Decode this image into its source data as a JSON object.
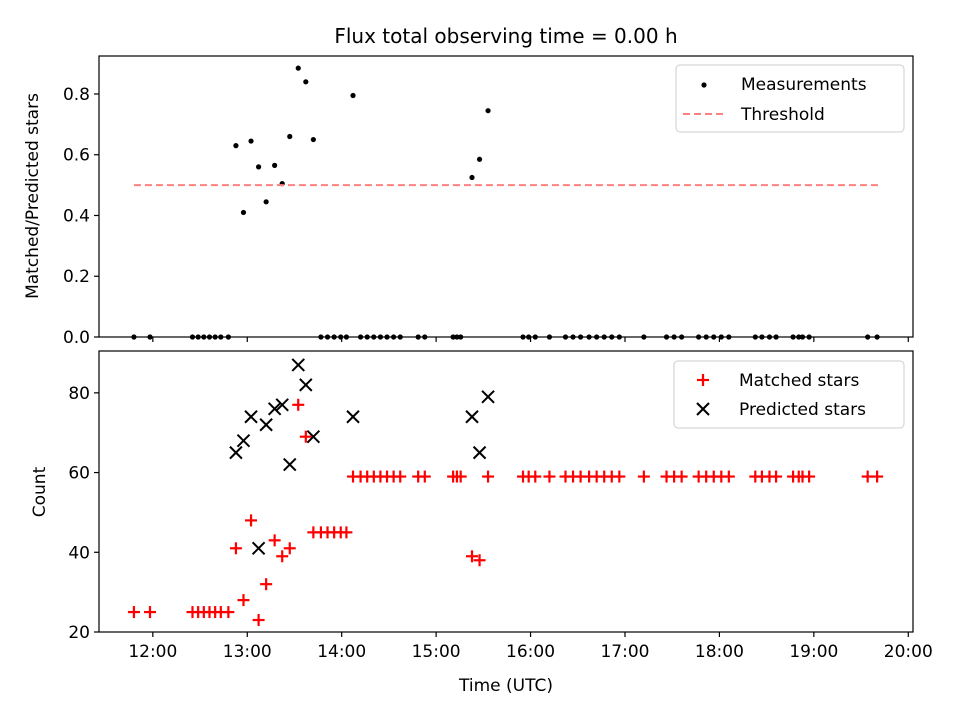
{
  "chart_data": [
    {
      "type": "scatter",
      "title": "Flux total observing time = 0.00 h",
      "xlabel": "",
      "ylabel": "Matched/Predicted stars",
      "xlim": [
        11.43,
        20.05
      ],
      "ylim": [
        0.0,
        0.925
      ],
      "xticks": [
        12,
        13,
        14,
        15,
        16,
        17,
        18,
        19,
        20
      ],
      "yticks": [
        0.0,
        0.2,
        0.4,
        0.6,
        0.8
      ],
      "ytick_labels": [
        "0.0",
        "0.2",
        "0.4",
        "0.6",
        "0.8"
      ],
      "legend": "upper right",
      "series": [
        {
          "name": "Measurements",
          "kind": "dot",
          "color": "#000000",
          "x": [
            11.8,
            11.97,
            12.42,
            12.48,
            12.54,
            12.6,
            12.66,
            12.72,
            12.8,
            12.88,
            12.96,
            13.04,
            13.12,
            13.2,
            13.29,
            13.37,
            13.45,
            13.54,
            13.62,
            13.7,
            13.78,
            13.85,
            13.92,
            13.99,
            14.05,
            14.12,
            14.2,
            14.27,
            14.34,
            14.41,
            14.48,
            14.55,
            14.62,
            14.81,
            14.88,
            15.18,
            15.22,
            15.26,
            15.38,
            15.46,
            15.55,
            15.92,
            15.98,
            16.05,
            16.2,
            16.37,
            16.45,
            16.53,
            16.62,
            16.7,
            16.78,
            16.86,
            16.94,
            17.2,
            17.44,
            17.52,
            17.6,
            17.78,
            17.86,
            17.94,
            18.02,
            18.1,
            18.38,
            18.45,
            18.53,
            18.6,
            18.78,
            18.84,
            18.88,
            18.95,
            19.57,
            19.67
          ],
          "y": [
            0,
            0,
            0,
            0,
            0,
            0,
            0,
            0,
            0,
            0.63,
            0.41,
            0.645,
            0.56,
            0.445,
            0.565,
            0.505,
            0.66,
            0.885,
            0.84,
            0.65,
            0,
            0,
            0,
            0,
            0,
            0.795,
            0,
            0,
            0,
            0,
            0,
            0,
            0,
            0,
            0,
            0,
            0,
            0,
            0.525,
            0.585,
            0.745,
            0,
            0,
            0,
            0,
            0,
            0,
            0,
            0,
            0,
            0,
            0,
            0,
            0,
            0,
            0,
            0,
            0,
            0,
            0,
            0,
            0,
            0,
            0,
            0,
            0,
            0,
            0,
            0,
            0,
            0,
            0
          ]
        },
        {
          "name": "Threshold",
          "kind": "line",
          "color": "#ff8080",
          "x": [
            11.8,
            19.7
          ],
          "y": [
            0.5,
            0.5
          ]
        }
      ]
    },
    {
      "type": "scatter",
      "title": "",
      "xlabel": "Time (UTC)",
      "ylabel": "Count",
      "xlim": [
        11.43,
        20.05
      ],
      "ylim": [
        20,
        90.5
      ],
      "xticks": [
        12,
        13,
        14,
        15,
        16,
        17,
        18,
        19,
        20
      ],
      "xtick_labels": [
        "12:00",
        "13:00",
        "14:00",
        "15:00",
        "16:00",
        "17:00",
        "18:00",
        "19:00",
        "20:00"
      ],
      "yticks": [
        20,
        40,
        60,
        80
      ],
      "ytick_labels": [
        "20",
        "40",
        "60",
        "80"
      ],
      "legend": "upper right",
      "series": [
        {
          "name": "Matched stars",
          "kind": "plus",
          "color": "#ff0000",
          "x": [
            11.8,
            11.97,
            12.42,
            12.48,
            12.54,
            12.6,
            12.66,
            12.72,
            12.8,
            12.88,
            12.96,
            13.04,
            13.12,
            13.2,
            13.29,
            13.37,
            13.45,
            13.54,
            13.62,
            13.7,
            13.78,
            13.85,
            13.92,
            13.99,
            14.05,
            14.12,
            14.2,
            14.27,
            14.34,
            14.41,
            14.48,
            14.55,
            14.62,
            14.81,
            14.88,
            15.18,
            15.22,
            15.26,
            15.38,
            15.46,
            15.55,
            15.92,
            15.98,
            16.05,
            16.2,
            16.37,
            16.45,
            16.53,
            16.62,
            16.7,
            16.78,
            16.86,
            16.94,
            17.2,
            17.44,
            17.52,
            17.6,
            17.78,
            17.86,
            17.94,
            18.02,
            18.1,
            18.38,
            18.45,
            18.53,
            18.6,
            18.78,
            18.84,
            18.88,
            18.95,
            19.57,
            19.67
          ],
          "y": [
            25,
            25,
            25,
            25,
            25,
            25,
            25,
            25,
            25,
            41,
            28,
            48,
            23,
            32,
            43,
            39,
            41,
            77,
            69,
            45,
            45,
            45,
            45,
            45,
            45,
            59,
            59,
            59,
            59,
            59,
            59,
            59,
            59,
            59,
            59,
            59,
            59,
            59,
            39,
            38,
            59,
            59,
            59,
            59,
            59,
            59,
            59,
            59,
            59,
            59,
            59,
            59,
            59,
            59,
            59,
            59,
            59,
            59,
            59,
            59,
            59,
            59,
            59,
            59,
            59,
            59,
            59,
            59,
            59,
            59,
            59,
            59
          ]
        },
        {
          "name": "Predicted stars",
          "kind": "x",
          "color": "#000000",
          "x": [
            12.88,
            12.96,
            13.04,
            13.12,
            13.2,
            13.29,
            13.37,
            13.45,
            13.54,
            13.62,
            13.7,
            14.12,
            15.38,
            15.46,
            15.55
          ],
          "y": [
            65,
            68,
            74,
            41,
            72,
            76,
            77,
            62,
            87,
            82,
            69,
            74,
            74,
            65,
            79
          ]
        }
      ]
    }
  ]
}
